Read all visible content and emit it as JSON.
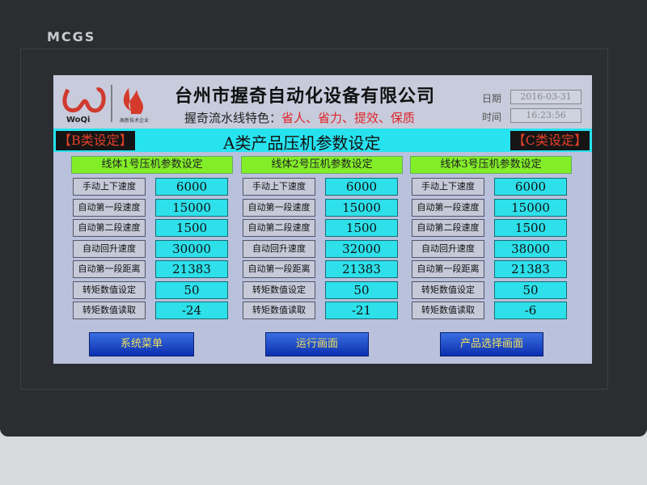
{
  "device": {
    "brand": "MCGS"
  },
  "header": {
    "logo_text": "WoQi",
    "logo_subtext": "高新技术企业",
    "company": "台州市握奇自动化设备有限公司",
    "slogan_prefix": "握奇流水线特色：",
    "slogan_highlight": "省人、省力、提效、保质",
    "date_label": "日期",
    "date_value": "2016-03-31",
    "time_label": "时间",
    "time_value": "16:23:56"
  },
  "band": {
    "left_button": "【B类设定】",
    "title": "A类产品压机参数设定",
    "right_button": "【C类设定】"
  },
  "columns": [
    {
      "title": "线体1号压机参数设定",
      "rows": [
        {
          "label": "手动上下速度",
          "value": "6000"
        },
        {
          "label": "自动第一段速度",
          "value": "15000"
        },
        {
          "label": "自动第二段速度",
          "value": "1500"
        },
        {
          "label": "自动回升速度",
          "value": "30000"
        },
        {
          "label": "自动第一段距离",
          "value": "21383"
        },
        {
          "label": "转矩数值设定",
          "value": "50"
        },
        {
          "label": "转矩数值读取",
          "value": "-24"
        }
      ]
    },
    {
      "title": "线体2号压机参数设定",
      "rows": [
        {
          "label": "手动上下速度",
          "value": "6000"
        },
        {
          "label": "自动第一段速度",
          "value": "15000"
        },
        {
          "label": "自动第二段速度",
          "value": "1500"
        },
        {
          "label": "自动回升速度",
          "value": "32000"
        },
        {
          "label": "自动第一段距离",
          "value": "21383"
        },
        {
          "label": "转矩数值设定",
          "value": "50"
        },
        {
          "label": "转矩数值读取",
          "value": "-21"
        }
      ]
    },
    {
      "title": "线体3号压机参数设定",
      "rows": [
        {
          "label": "手动上下速度",
          "value": "6000"
        },
        {
          "label": "自动第一段速度",
          "value": "15000"
        },
        {
          "label": "自动第二段速度",
          "value": "1500"
        },
        {
          "label": "自动回升速度",
          "value": "38000"
        },
        {
          "label": "自动第一段距离",
          "value": "21383"
        },
        {
          "label": "转矩数值设定",
          "value": "50"
        },
        {
          "label": "转矩数值读取",
          "value": "-6"
        }
      ]
    }
  ],
  "buttons": {
    "system_menu": "系统菜单",
    "run_screen": "运行画面",
    "product_select": "产品选择画面"
  }
}
